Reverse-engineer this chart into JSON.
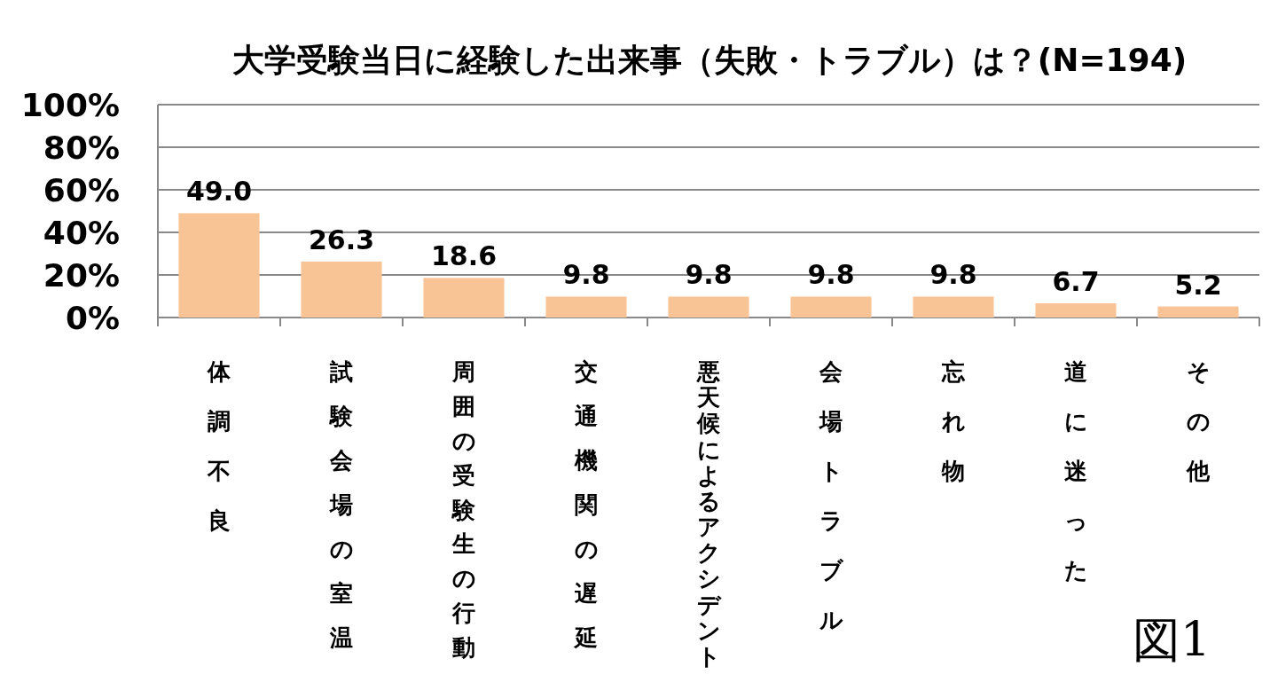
{
  "chart_data": {
    "type": "bar",
    "title": "大学受験当日に経験した出来事（失敗・トラブル）は？(N=194)",
    "categories": [
      "体調不良",
      "試験会場の室温",
      "周囲の受験生の行動",
      "交通機関の遅延",
      "悪天候によるアクシデント",
      "会場トラブル",
      "忘れ物",
      "道に迷った",
      "その他"
    ],
    "values": [
      49.0,
      26.3,
      18.6,
      9.8,
      9.8,
      9.8,
      9.8,
      6.7,
      5.2
    ],
    "color": "#f8c395",
    "value_labels": [
      "49.0",
      "26.3",
      "18.6",
      "9.8",
      "9.8",
      "9.8",
      "9.8",
      "6.7",
      "5.2"
    ],
    "ylim": [
      0,
      100
    ],
    "yticks": [
      {
        "value": 0,
        "label": "0%"
      },
      {
        "value": 20,
        "label": "20%"
      },
      {
        "value": 40,
        "label": "40%"
      },
      {
        "value": 60,
        "label": "60%"
      },
      {
        "value": 80,
        "label": "80%"
      },
      {
        "value": 100,
        "label": "100%"
      }
    ],
    "grid": "y",
    "annotations": [
      "図1"
    ]
  }
}
